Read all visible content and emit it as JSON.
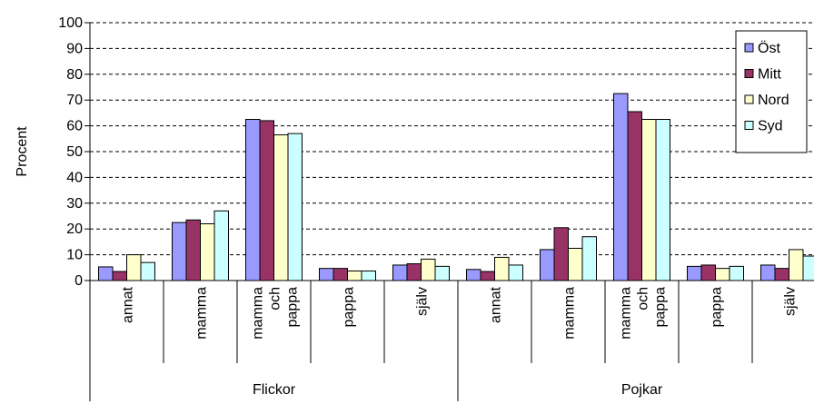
{
  "chart_data": {
    "type": "bar",
    "title": "",
    "xlabel": "",
    "ylabel": "Procent",
    "ylim": [
      0,
      100
    ],
    "yticks": [
      0,
      10,
      20,
      30,
      40,
      50,
      60,
      70,
      80,
      90,
      100
    ],
    "grid": "dashed horizontal",
    "legend_position": "right",
    "groups": [
      {
        "name": "Flickor",
        "categories": [
          [
            "annat"
          ],
          [
            "mamma"
          ],
          [
            "mamma",
            "och",
            "pappa"
          ],
          [
            "pappa"
          ],
          [
            "själv"
          ]
        ]
      },
      {
        "name": "Pojkar",
        "categories": [
          [
            "annat"
          ],
          [
            "mamma"
          ],
          [
            "mamma",
            "och",
            "pappa"
          ],
          [
            "pappa"
          ],
          [
            "själv"
          ]
        ]
      }
    ],
    "series": [
      {
        "name": "Öst",
        "color": "#9999ff",
        "values": [
          5.3,
          22.5,
          62.5,
          4.7,
          6.0,
          4.3,
          12.0,
          72.5,
          5.5,
          6.0
        ]
      },
      {
        "name": "Mitt",
        "color": "#993366",
        "values": [
          3.5,
          23.5,
          62.0,
          4.7,
          6.5,
          3.5,
          20.5,
          65.5,
          6.0,
          4.7
        ]
      },
      {
        "name": "Nord",
        "color": "#ffffcc",
        "values": [
          10.0,
          22.0,
          56.5,
          3.7,
          8.3,
          9.0,
          12.5,
          62.5,
          4.7,
          12.0
        ]
      },
      {
        "name": "Syd",
        "color": "#ccffff",
        "values": [
          7.0,
          27.0,
          57.0,
          3.7,
          5.5,
          6.0,
          17.0,
          62.5,
          5.5,
          9.5
        ]
      }
    ]
  }
}
